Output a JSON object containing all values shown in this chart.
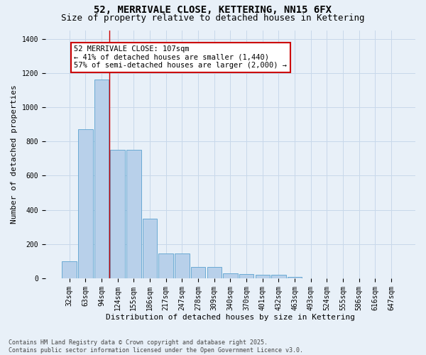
{
  "title": "52, MERRIVALE CLOSE, KETTERING, NN15 6FX",
  "subtitle": "Size of property relative to detached houses in Kettering",
  "xlabel": "Distribution of detached houses by size in Kettering",
  "ylabel": "Number of detached properties",
  "categories": [
    "32sqm",
    "63sqm",
    "94sqm",
    "124sqm",
    "155sqm",
    "186sqm",
    "217sqm",
    "247sqm",
    "278sqm",
    "309sqm",
    "340sqm",
    "370sqm",
    "401sqm",
    "432sqm",
    "463sqm",
    "493sqm",
    "524sqm",
    "555sqm",
    "586sqm",
    "616sqm",
    "647sqm"
  ],
  "values": [
    100,
    870,
    1160,
    750,
    750,
    350,
    145,
    145,
    65,
    65,
    30,
    25,
    20,
    20,
    10,
    0,
    0,
    0,
    0,
    0,
    0
  ],
  "bar_color": "#b8d0ea",
  "bar_edge_color": "#6aaad4",
  "grid_color": "#c8d8ea",
  "bg_color": "#e8f0f8",
  "red_line_x": 2.5,
  "annotation_text": "52 MERRIVALE CLOSE: 107sqm\n← 41% of detached houses are smaller (1,440)\n57% of semi-detached houses are larger (2,000) →",
  "annotation_box_facecolor": "#ffffff",
  "annotation_box_edgecolor": "#cc0000",
  "ylim": [
    0,
    1450
  ],
  "yticks": [
    0,
    200,
    400,
    600,
    800,
    1000,
    1200,
    1400
  ],
  "footer": "Contains HM Land Registry data © Crown copyright and database right 2025.\nContains public sector information licensed under the Open Government Licence v3.0.",
  "title_fontsize": 10,
  "subtitle_fontsize": 9,
  "axis_label_fontsize": 8,
  "tick_fontsize": 7,
  "annotation_fontsize": 7.5,
  "footer_fontsize": 6
}
